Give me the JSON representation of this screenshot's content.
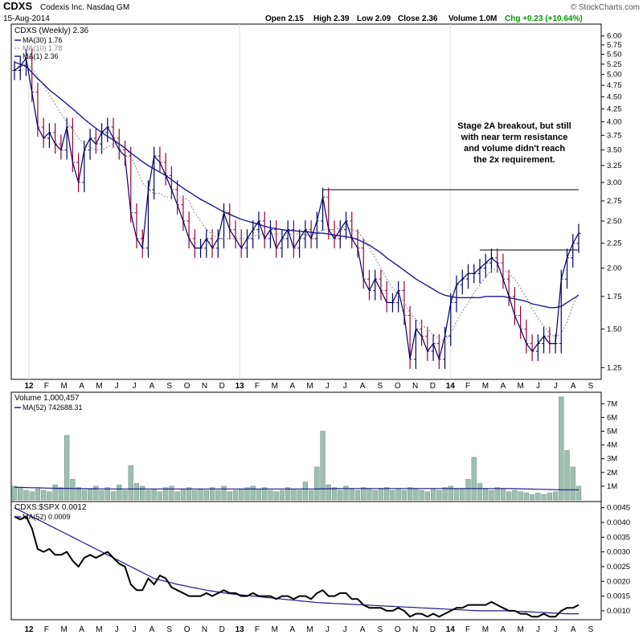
{
  "header": {
    "symbol": "CDXS",
    "company": "Codexis Inc.  Nasdaq GM",
    "date": "15-Aug-2014",
    "open": "Open 2.15",
    "high": "High 2.39",
    "low": "Low 2.09",
    "close": "Close 2.36",
    "volume": "Volume 1.0M",
    "chg": "Chg +0.23 (+10.64%)",
    "copyright": "© StockCharts.com",
    "chg_color": "#009900"
  },
  "price_panel": {
    "legend": [
      "CDXS (Weekly) 2.36",
      "MA(30) 1.76",
      "MA(10) 1.78",
      "MA(1) 2.36"
    ],
    "annotation": [
      "Stage 2A breakout, but still",
      "with near term resistance",
      "and volume didn't reach",
      "the 2x requirement."
    ]
  },
  "volume_panel": {
    "legend": [
      "Volume 1,000,457",
      "MA(52) 742688.31"
    ]
  },
  "ratio_panel": {
    "legend": [
      "CDXS:$SPX 0.0012",
      "MA(52) 0.0009"
    ]
  },
  "x_axis_labels": [
    "12",
    "F",
    "M",
    "A",
    "M",
    "J",
    "J",
    "A",
    "S",
    "O",
    "N",
    "D",
    "13",
    "F",
    "M",
    "A",
    "M",
    "J",
    "J",
    "A",
    "S",
    "O",
    "N",
    "D",
    "14",
    "F",
    "M",
    "A",
    "M",
    "J",
    "J",
    "A",
    "S"
  ],
  "colors": {
    "ma30": "#1a1a8c",
    "ma10": "#999999",
    "up_bar": "#000066",
    "down_bar": "#990033",
    "volume_bar": "#9dbfb0",
    "ratio_line": "#000000",
    "ratio_ma": "#1a1a8c"
  },
  "chart_data": [
    {
      "type": "ohlc",
      "title": "CDXS (Weekly)",
      "scale": "log",
      "y_ticks": [
        1.25,
        1.5,
        1.75,
        2.0,
        2.25,
        2.5,
        2.75,
        3.0,
        3.25,
        3.5,
        3.75,
        4.0,
        4.25,
        4.5,
        4.75,
        5.0,
        5.25,
        5.5,
        5.75,
        6.0
      ],
      "ylim": [
        1.2,
        6.25
      ],
      "close": [
        5.1,
        5.2,
        5.4,
        4.6,
        3.9,
        3.7,
        3.8,
        3.6,
        3.5,
        3.9,
        3.3,
        3.0,
        3.5,
        3.7,
        3.6,
        3.8,
        3.9,
        3.7,
        3.5,
        3.4,
        2.6,
        2.3,
        2.2,
        2.9,
        3.4,
        3.3,
        3.1,
        2.9,
        2.7,
        2.5,
        2.3,
        2.2,
        2.2,
        2.3,
        2.2,
        2.3,
        2.6,
        2.4,
        2.3,
        2.2,
        2.3,
        2.4,
        2.5,
        2.3,
        2.4,
        2.2,
        2.3,
        2.4,
        2.2,
        2.3,
        2.4,
        2.3,
        2.5,
        2.8,
        2.4,
        2.3,
        2.4,
        2.5,
        2.3,
        2.2,
        1.9,
        1.8,
        1.9,
        1.8,
        1.7,
        1.7,
        1.8,
        1.6,
        1.3,
        1.5,
        1.45,
        1.35,
        1.4,
        1.3,
        1.45,
        1.7,
        1.85,
        1.9,
        1.95,
        1.95,
        2.0,
        2.05,
        2.1,
        2.05,
        1.9,
        1.75,
        1.6,
        1.5,
        1.4,
        1.35,
        1.4,
        1.45,
        1.4,
        1.4,
        1.9,
        2.1,
        2.25,
        2.36
      ],
      "ma30": [
        5.3,
        5.25,
        5.2,
        5.05,
        4.9,
        4.78,
        4.65,
        4.55,
        4.45,
        4.35,
        4.25,
        4.15,
        4.05,
        3.96,
        3.88,
        3.8,
        3.73,
        3.67,
        3.6,
        3.53,
        3.45,
        3.38,
        3.31,
        3.25,
        3.2,
        3.15,
        3.1,
        3.04,
        2.98,
        2.92,
        2.87,
        2.82,
        2.77,
        2.73,
        2.69,
        2.65,
        2.61,
        2.58,
        2.55,
        2.52,
        2.5,
        2.48,
        2.46,
        2.44,
        2.42,
        2.41,
        2.4,
        2.39,
        2.39,
        2.38,
        2.38,
        2.37,
        2.36,
        2.36,
        2.35,
        2.34,
        2.33,
        2.32,
        2.31,
        2.29,
        2.26,
        2.23,
        2.19,
        2.15,
        2.1,
        2.06,
        2.02,
        1.98,
        1.94,
        1.9,
        1.87,
        1.84,
        1.81,
        1.78,
        1.76,
        1.75,
        1.74,
        1.74,
        1.74,
        1.74,
        1.74,
        1.75,
        1.75,
        1.75,
        1.75,
        1.74,
        1.73,
        1.72,
        1.71,
        1.69,
        1.68,
        1.67,
        1.66,
        1.66,
        1.67,
        1.7,
        1.73,
        1.76
      ],
      "ma10": [
        5.2,
        5.2,
        5.25,
        5.15,
        4.95,
        4.75,
        4.55,
        4.35,
        4.15,
        4.0,
        3.85,
        3.7,
        3.6,
        3.55,
        3.5,
        3.5,
        3.55,
        3.6,
        3.6,
        3.55,
        3.4,
        3.2,
        3.0,
        2.9,
        2.85,
        2.85,
        2.8,
        2.8,
        2.8,
        2.8,
        2.75,
        2.6,
        2.5,
        2.4,
        2.35,
        2.3,
        2.3,
        2.3,
        2.3,
        2.3,
        2.3,
        2.32,
        2.35,
        2.35,
        2.35,
        2.35,
        2.35,
        2.35,
        2.35,
        2.35,
        2.34,
        2.34,
        2.36,
        2.4,
        2.4,
        2.4,
        2.42,
        2.42,
        2.4,
        2.38,
        2.3,
        2.2,
        2.1,
        2.0,
        1.9,
        1.82,
        1.76,
        1.7,
        1.62,
        1.57,
        1.53,
        1.5,
        1.46,
        1.43,
        1.42,
        1.47,
        1.55,
        1.63,
        1.7,
        1.78,
        1.85,
        1.92,
        1.98,
        2.0,
        1.99,
        1.95,
        1.9,
        1.82,
        1.74,
        1.65,
        1.58,
        1.52,
        1.47,
        1.44,
        1.47,
        1.55,
        1.68,
        1.78
      ]
    },
    {
      "type": "bar",
      "title": "Volume",
      "y_ticks_labels": [
        "1M",
        "2M",
        "3M",
        "4M",
        "5M",
        "6M",
        "7M"
      ],
      "ylim": [
        0,
        7600000
      ],
      "values": [
        1000000,
        900000,
        700000,
        600000,
        800000,
        700000,
        600000,
        1100000,
        900000,
        4700000,
        1500000,
        900000,
        700000,
        800000,
        1000000,
        700000,
        900000,
        600000,
        1100000,
        700000,
        2500000,
        1200000,
        1000000,
        700000,
        800000,
        600000,
        900000,
        1000000,
        600000,
        800000,
        900000,
        700000,
        800000,
        700000,
        900000,
        700000,
        1000000,
        600000,
        700000,
        800000,
        900000,
        1000000,
        800000,
        900000,
        700000,
        600000,
        700000,
        900000,
        800000,
        700000,
        1300000,
        700000,
        2400000,
        5000000,
        1100000,
        900000,
        700000,
        1000000,
        800000,
        700000,
        900000,
        800000,
        700000,
        800000,
        900000,
        700000,
        800000,
        700000,
        900000,
        800000,
        700000,
        600000,
        800000,
        700000,
        900000,
        1000000,
        800000,
        800000,
        1500000,
        3100000,
        1200000,
        800000,
        700000,
        900000,
        800000,
        600000,
        700000,
        600000,
        500000,
        400000,
        500000,
        400000,
        500000,
        600000,
        7500000,
        3600000,
        2400000,
        1000000
      ],
      "ma52": [
        920000,
        910000,
        900000,
        890000,
        880000,
        870000,
        860000,
        850000,
        840000,
        835000,
        830000,
        825000,
        820000,
        815000,
        810000,
        805000,
        800000,
        800000,
        800000,
        800000,
        800000,
        800000,
        800000,
        800000,
        800000,
        800000,
        800000,
        800000,
        800000,
        800000,
        800000,
        800000,
        800000,
        800000,
        800000,
        800000,
        800000,
        800000,
        800000,
        800000,
        800000,
        800000,
        800000,
        800000,
        800000,
        800000,
        800000,
        800000,
        800000,
        800000,
        800000,
        800000,
        800000,
        810000,
        815000,
        820000,
        825000,
        830000,
        830000,
        830000,
        830000,
        830000,
        830000,
        830000,
        830000,
        830000,
        830000,
        830000,
        830000,
        830000,
        830000,
        830000,
        830000,
        830000,
        830000,
        830000,
        830000,
        830000,
        830000,
        830000,
        830000,
        830000,
        830000,
        830000,
        830000,
        830000,
        820000,
        810000,
        800000,
        790000,
        780000,
        770000,
        760000,
        750000,
        745000,
        743000,
        742000,
        742688
      ]
    },
    {
      "type": "line",
      "title": "CDXS:$SPX",
      "y_ticks": [
        0.001,
        0.0015,
        0.002,
        0.0025,
        0.003,
        0.0035,
        0.004,
        0.0045
      ],
      "y_tick_labels": [
        "0.0010",
        "0.0015",
        "0.0020",
        "0.0025",
        "0.0030",
        "0.0035",
        "0.0040",
        "0.0045"
      ],
      "ylim": [
        0.00078,
        0.0046
      ],
      "series": [
        {
          "name": "CDXS:$SPX",
          "values": [
            0.0042,
            0.0041,
            0.0042,
            0.0038,
            0.0031,
            0.003,
            0.0031,
            0.0029,
            0.0029,
            0.003,
            0.0027,
            0.0025,
            0.0028,
            0.0029,
            0.0028,
            0.0029,
            0.003,
            0.0028,
            0.0026,
            0.0025,
            0.0019,
            0.0017,
            0.0017,
            0.0021,
            0.0019,
            0.0022,
            0.0021,
            0.0018,
            0.0017,
            0.0016,
            0.0015,
            0.0015,
            0.0015,
            0.0016,
            0.0015,
            0.0016,
            0.0017,
            0.0016,
            0.0016,
            0.0015,
            0.0015,
            0.0016,
            0.0015,
            0.0015,
            0.0015,
            0.0014,
            0.0015,
            0.0015,
            0.0014,
            0.0015,
            0.0015,
            0.0014,
            0.0016,
            0.0017,
            0.0015,
            0.0015,
            0.0016,
            0.0016,
            0.0014,
            0.0014,
            0.0012,
            0.0011,
            0.0011,
            0.0011,
            0.001,
            0.001,
            0.0011,
            0.001,
            0.0008,
            0.0009,
            0.0009,
            0.0008,
            0.0009,
            0.0008,
            0.0009,
            0.001,
            0.0011,
            0.0011,
            0.0012,
            0.0012,
            0.0012,
            0.0012,
            0.0013,
            0.0012,
            0.0011,
            0.001,
            0.001,
            0.0009,
            0.0009,
            0.0008,
            0.0008,
            0.0009,
            0.0008,
            0.0008,
            0.001,
            0.0011,
            0.0011,
            0.0012
          ]
        },
        {
          "name": "MA(52)",
          "values": [
            0.0045,
            0.0044,
            0.0043,
            0.0042,
            0.0041,
            0.004,
            0.0039,
            0.0038,
            0.0037,
            0.0036,
            0.0035,
            0.0034,
            0.0033,
            0.0032,
            0.0031,
            0.003,
            0.0029,
            0.0028,
            0.0027,
            0.0026,
            0.0025,
            0.0024,
            0.0023,
            0.0022,
            0.0021,
            0.00205,
            0.002,
            0.00195,
            0.0019,
            0.00186,
            0.00182,
            0.00178,
            0.00174,
            0.0017,
            0.00167,
            0.00164,
            0.00161,
            0.00158,
            0.00156,
            0.00154,
            0.00152,
            0.0015,
            0.00148,
            0.00146,
            0.00144,
            0.00142,
            0.0014,
            0.00138,
            0.00136,
            0.00134,
            0.00132,
            0.0013,
            0.00128,
            0.00127,
            0.00126,
            0.00125,
            0.00124,
            0.00123,
            0.00122,
            0.00121,
            0.0012,
            0.00119,
            0.00118,
            0.00117,
            0.00116,
            0.00115,
            0.00114,
            0.00113,
            0.00112,
            0.00111,
            0.0011,
            0.00109,
            0.00108,
            0.00107,
            0.00106,
            0.00105,
            0.00104,
            0.00103,
            0.00102,
            0.00101,
            0.001,
            0.001,
            0.001,
            0.001,
            0.001,
            0.001,
            0.00099,
            0.00098,
            0.00097,
            0.00096,
            0.00095,
            0.00094,
            0.00093,
            0.00092,
            0.00091,
            0.0009,
            0.0009,
            0.0009
          ]
        }
      ]
    }
  ]
}
